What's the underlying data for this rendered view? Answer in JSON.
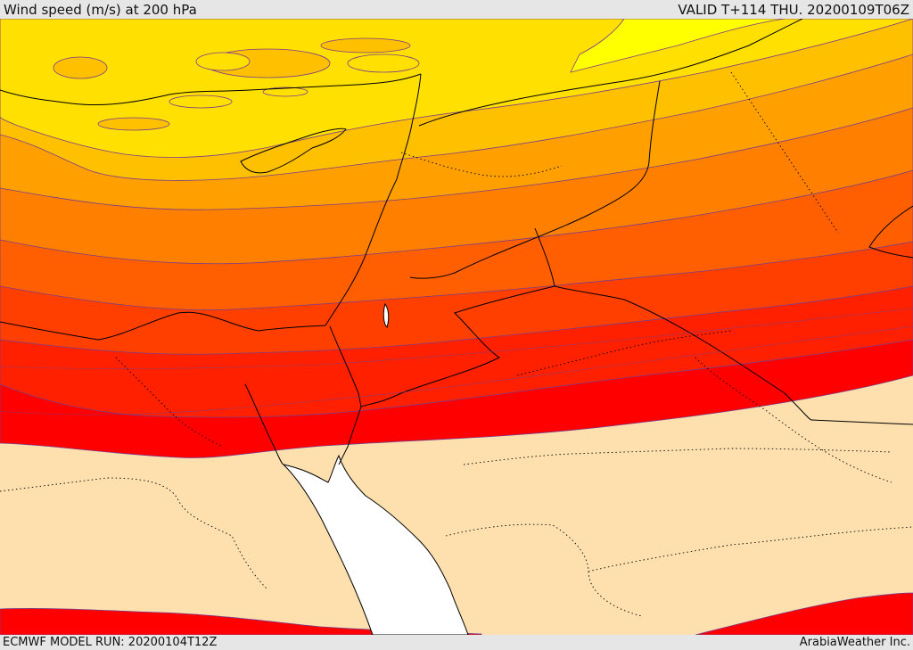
{
  "header": {
    "title": "Wind speed (m/s) at 200 hPa",
    "valid": "VALID T+114 THU. 20200109T06Z"
  },
  "footer": {
    "model_run": "ECMWF MODEL RUN: 20200104T12Z",
    "credit": "ArabiaWeather Inc."
  },
  "colors": {
    "land_base": "#fde0ae",
    "sea": "#ffffff",
    "band_yellow_light": "#ffff00",
    "band_yellow": "#ffe000",
    "band_amber": "#ffc000",
    "band_orange_light": "#ffa000",
    "band_orange": "#ff7f00",
    "band_orange_dark": "#ff5f00",
    "band_red_orange": "#ff3f00",
    "band_red_light": "#ff2000",
    "band_red": "#ff0000",
    "contour_line": "#7a3d8a",
    "coastline": "#000000",
    "border": "#000000"
  }
}
